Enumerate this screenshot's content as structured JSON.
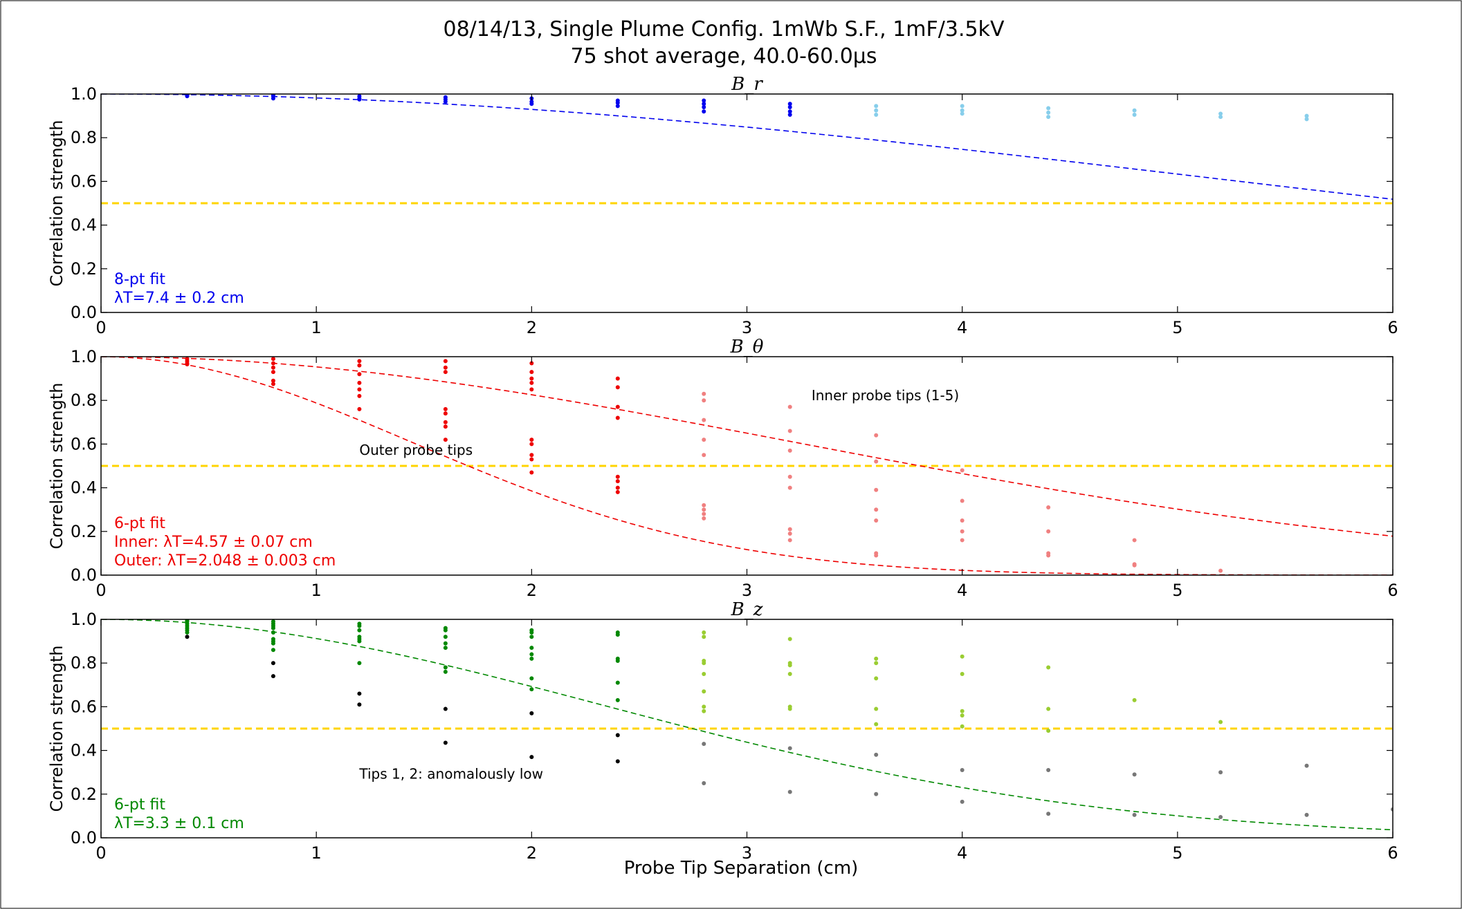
{
  "figure": {
    "title_line1": "08/14/13, Single Plume Config. 1mWb S.F., 1mF/3.5kV",
    "title_line2": "75 shot average, 40.0-60.0μs",
    "xlabel": "Probe Tip Separation (cm)",
    "threshold_color": "#FFD400"
  },
  "chart_data": [
    {
      "type": "scatter",
      "title": "B_r",
      "ylabel": "Correlation strength",
      "xlim": [
        0,
        6
      ],
      "ylim": [
        0,
        1
      ],
      "xticks": [
        "0",
        "1",
        "2",
        "3",
        "4",
        "5",
        "6"
      ],
      "yticks": [
        "0.0",
        "0.2",
        "0.4",
        "0.6",
        "0.8",
        "1.0"
      ],
      "threshold": 0.5,
      "fit_lambdas": [
        7.4
      ],
      "fit_text": [
        "8-pt fit",
        "λT=7.4 ± 0.2 cm"
      ],
      "annotations": [],
      "series": [
        {
          "color": "#0000EE",
          "points": [
            [
              0.4,
              0.995
            ],
            [
              0.4,
              0.99
            ],
            [
              0.8,
              0.995
            ],
            [
              0.8,
              0.99
            ],
            [
              0.8,
              0.98
            ],
            [
              1.2,
              0.99
            ],
            [
              1.2,
              0.98
            ],
            [
              1.2,
              0.975
            ],
            [
              1.6,
              0.985
            ],
            [
              1.6,
              0.975
            ],
            [
              1.6,
              0.965
            ],
            [
              2.0,
              0.98
            ],
            [
              2.0,
              0.965
            ],
            [
              2.0,
              0.955
            ],
            [
              2.4,
              0.97
            ],
            [
              2.4,
              0.96
            ],
            [
              2.4,
              0.945
            ],
            [
              2.8,
              0.97
            ],
            [
              2.8,
              0.955
            ],
            [
              2.8,
              0.94
            ],
            [
              2.8,
              0.92
            ],
            [
              3.2,
              0.955
            ],
            [
              3.2,
              0.94
            ],
            [
              3.2,
              0.92
            ],
            [
              3.2,
              0.905
            ]
          ]
        },
        {
          "color": "#87CEEB",
          "points": [
            [
              3.6,
              0.945
            ],
            [
              3.6,
              0.925
            ],
            [
              3.6,
              0.905
            ],
            [
              4.0,
              0.945
            ],
            [
              4.0,
              0.925
            ],
            [
              4.0,
              0.91
            ],
            [
              4.4,
              0.935
            ],
            [
              4.4,
              0.915
            ],
            [
              4.4,
              0.895
            ],
            [
              4.8,
              0.925
            ],
            [
              4.8,
              0.905
            ],
            [
              5.2,
              0.91
            ],
            [
              5.2,
              0.895
            ],
            [
              5.6,
              0.9
            ],
            [
              5.6,
              0.885
            ]
          ]
        }
      ],
      "fit_color": "#0000EE"
    },
    {
      "type": "scatter",
      "title": "B_θ",
      "ylabel": "Correlation strength",
      "xlim": [
        0,
        6
      ],
      "ylim": [
        0,
        1
      ],
      "xticks": [
        "0",
        "1",
        "2",
        "3",
        "4",
        "5",
        "6"
      ],
      "yticks": [
        "0.0",
        "0.2",
        "0.4",
        "0.6",
        "0.8",
        "1.0"
      ],
      "threshold": 0.5,
      "fit_lambdas": [
        4.57,
        2.048
      ],
      "fit_text": [
        "6-pt fit",
        "Inner: λT=4.57 ± 0.07 cm",
        "Outer: λT=2.048 ± 0.003 cm"
      ],
      "annotations": [
        {
          "text": "Inner probe tips (1-5)",
          "x": 3.3,
          "y": 0.8
        },
        {
          "text": "Outer probe tips",
          "x": 1.2,
          "y": 0.55
        }
      ],
      "series": [
        {
          "color": "#EE0000",
          "points": [
            [
              0.4,
              0.99
            ],
            [
              0.4,
              0.98
            ],
            [
              0.4,
              0.97
            ],
            [
              0.4,
              0.965
            ],
            [
              0.8,
              0.99
            ],
            [
              0.8,
              0.97
            ],
            [
              0.8,
              0.95
            ],
            [
              0.8,
              0.93
            ],
            [
              0.8,
              0.89
            ],
            [
              0.8,
              0.875
            ],
            [
              1.2,
              0.98
            ],
            [
              1.2,
              0.96
            ],
            [
              1.2,
              0.92
            ],
            [
              1.2,
              0.88
            ],
            [
              1.2,
              0.85
            ],
            [
              1.2,
              0.82
            ],
            [
              1.2,
              0.76
            ],
            [
              1.6,
              0.98
            ],
            [
              1.6,
              0.95
            ],
            [
              1.6,
              0.93
            ],
            [
              1.6,
              0.76
            ],
            [
              1.6,
              0.74
            ],
            [
              1.6,
              0.7
            ],
            [
              1.6,
              0.68
            ],
            [
              1.6,
              0.62
            ],
            [
              2.0,
              0.97
            ],
            [
              2.0,
              0.93
            ],
            [
              2.0,
              0.9
            ],
            [
              2.0,
              0.88
            ],
            [
              2.0,
              0.85
            ],
            [
              2.0,
              0.62
            ],
            [
              2.0,
              0.6
            ],
            [
              2.0,
              0.55
            ],
            [
              2.0,
              0.53
            ],
            [
              2.0,
              0.47
            ],
            [
              2.4,
              0.9
            ],
            [
              2.4,
              0.86
            ],
            [
              2.4,
              0.77
            ],
            [
              2.4,
              0.72
            ],
            [
              2.4,
              0.45
            ],
            [
              2.4,
              0.43
            ],
            [
              2.4,
              0.4
            ],
            [
              2.4,
              0.38
            ]
          ]
        },
        {
          "color": "#F08080",
          "points": [
            [
              2.8,
              0.83
            ],
            [
              2.8,
              0.8
            ],
            [
              2.8,
              0.71
            ],
            [
              2.8,
              0.62
            ],
            [
              2.8,
              0.55
            ],
            [
              2.8,
              0.32
            ],
            [
              2.8,
              0.3
            ],
            [
              2.8,
              0.28
            ],
            [
              2.8,
              0.26
            ],
            [
              3.2,
              0.77
            ],
            [
              3.2,
              0.66
            ],
            [
              3.2,
              0.57
            ],
            [
              3.2,
              0.45
            ],
            [
              3.2,
              0.4
            ],
            [
              3.2,
              0.21
            ],
            [
              3.2,
              0.19
            ],
            [
              3.2,
              0.16
            ],
            [
              3.6,
              0.64
            ],
            [
              3.6,
              0.52
            ],
            [
              3.6,
              0.39
            ],
            [
              3.6,
              0.3
            ],
            [
              3.6,
              0.25
            ],
            [
              3.6,
              0.1
            ],
            [
              3.6,
              0.09
            ],
            [
              4.0,
              0.48
            ],
            [
              4.0,
              0.34
            ],
            [
              4.0,
              0.25
            ],
            [
              4.0,
              0.2
            ],
            [
              4.0,
              0.16
            ],
            [
              4.4,
              0.31
            ],
            [
              4.4,
              0.2
            ],
            [
              4.4,
              0.1
            ],
            [
              4.4,
              0.09
            ],
            [
              4.8,
              0.16
            ],
            [
              4.8,
              0.05
            ],
            [
              4.8,
              0.045
            ],
            [
              5.2,
              0.02
            ]
          ]
        }
      ],
      "fit_color": "#EE0000"
    },
    {
      "type": "scatter",
      "title": "B_z",
      "ylabel": "Correlation strength",
      "xlim": [
        0,
        6
      ],
      "ylim": [
        0,
        1
      ],
      "xticks": [
        "0",
        "1",
        "2",
        "3",
        "4",
        "5",
        "6"
      ],
      "yticks": [
        "0.0",
        "0.2",
        "0.4",
        "0.6",
        "0.8",
        "1.0"
      ],
      "threshold": 0.5,
      "fit_lambdas": [
        3.3
      ],
      "fit_text": [
        "6-pt fit",
        "λT=3.3 ± 0.1 cm"
      ],
      "annotations": [
        {
          "text": "Tips 1, 2: anomalously low",
          "x": 1.2,
          "y": 0.27
        }
      ],
      "series": [
        {
          "color": "#008800",
          "points": [
            [
              0.4,
              0.995
            ],
            [
              0.4,
              0.99
            ],
            [
              0.4,
              0.98
            ],
            [
              0.4,
              0.97
            ],
            [
              0.4,
              0.96
            ],
            [
              0.4,
              0.95
            ],
            [
              0.4,
              0.94
            ],
            [
              0.8,
              0.99
            ],
            [
              0.8,
              0.98
            ],
            [
              0.8,
              0.97
            ],
            [
              0.8,
              0.96
            ],
            [
              0.8,
              0.94
            ],
            [
              0.8,
              0.91
            ],
            [
              0.8,
              0.9
            ],
            [
              0.8,
              0.89
            ],
            [
              0.8,
              0.86
            ],
            [
              1.2,
              0.98
            ],
            [
              1.2,
              0.97
            ],
            [
              1.2,
              0.95
            ],
            [
              1.2,
              0.92
            ],
            [
              1.2,
              0.91
            ],
            [
              1.2,
              0.9
            ],
            [
              1.2,
              0.8
            ],
            [
              1.6,
              0.96
            ],
            [
              1.6,
              0.95
            ],
            [
              1.6,
              0.92
            ],
            [
              1.6,
              0.89
            ],
            [
              1.6,
              0.87
            ],
            [
              1.6,
              0.78
            ],
            [
              1.6,
              0.76
            ],
            [
              2.0,
              0.95
            ],
            [
              2.0,
              0.94
            ],
            [
              2.0,
              0.92
            ],
            [
              2.0,
              0.87
            ],
            [
              2.0,
              0.84
            ],
            [
              2.0,
              0.82
            ],
            [
              2.0,
              0.73
            ],
            [
              2.0,
              0.68
            ],
            [
              2.4,
              0.94
            ],
            [
              2.4,
              0.93
            ],
            [
              2.4,
              0.82
            ],
            [
              2.4,
              0.81
            ],
            [
              2.4,
              0.71
            ],
            [
              2.4,
              0.63
            ]
          ]
        },
        {
          "color": "#000000",
          "points": [
            [
              0.4,
              0.92
            ],
            [
              0.8,
              0.8
            ],
            [
              0.8,
              0.74
            ],
            [
              1.2,
              0.66
            ],
            [
              1.2,
              0.61
            ],
            [
              1.6,
              0.59
            ],
            [
              1.6,
              0.435
            ],
            [
              2.0,
              0.57
            ],
            [
              2.0,
              0.37
            ],
            [
              2.4,
              0.47
            ],
            [
              2.4,
              0.35
            ]
          ]
        },
        {
          "color": "#9ACD32",
          "points": [
            [
              2.8,
              0.94
            ],
            [
              2.8,
              0.92
            ],
            [
              2.8,
              0.81
            ],
            [
              2.8,
              0.8
            ],
            [
              2.8,
              0.75
            ],
            [
              2.8,
              0.67
            ],
            [
              2.8,
              0.6
            ],
            [
              2.8,
              0.58
            ],
            [
              3.2,
              0.91
            ],
            [
              3.2,
              0.8
            ],
            [
              3.2,
              0.79
            ],
            [
              3.2,
              0.75
            ],
            [
              3.2,
              0.6
            ],
            [
              3.2,
              0.59
            ],
            [
              3.6,
              0.82
            ],
            [
              3.6,
              0.8
            ],
            [
              3.6,
              0.73
            ],
            [
              3.6,
              0.59
            ],
            [
              3.6,
              0.52
            ],
            [
              4.0,
              0.83
            ],
            [
              4.0,
              0.75
            ],
            [
              4.0,
              0.58
            ],
            [
              4.0,
              0.56
            ],
            [
              4.0,
              0.51
            ],
            [
              4.4,
              0.78
            ],
            [
              4.4,
              0.59
            ],
            [
              4.4,
              0.49
            ],
            [
              4.8,
              0.63
            ],
            [
              5.2,
              0.53
            ]
          ]
        },
        {
          "color": "#777777",
          "points": [
            [
              2.8,
              0.43
            ],
            [
              2.8,
              0.25
            ],
            [
              3.2,
              0.41
            ],
            [
              3.2,
              0.21
            ],
            [
              3.6,
              0.38
            ],
            [
              3.6,
              0.2
            ],
            [
              4.0,
              0.31
            ],
            [
              4.0,
              0.165
            ],
            [
              4.4,
              0.31
            ],
            [
              4.4,
              0.11
            ],
            [
              4.8,
              0.29
            ],
            [
              4.8,
              0.105
            ],
            [
              5.2,
              0.3
            ],
            [
              5.2,
              0.095
            ],
            [
              5.6,
              0.33
            ],
            [
              5.6,
              0.105
            ],
            [
              6.0,
              0.13
            ]
          ]
        }
      ],
      "fit_color": "#008800"
    }
  ]
}
